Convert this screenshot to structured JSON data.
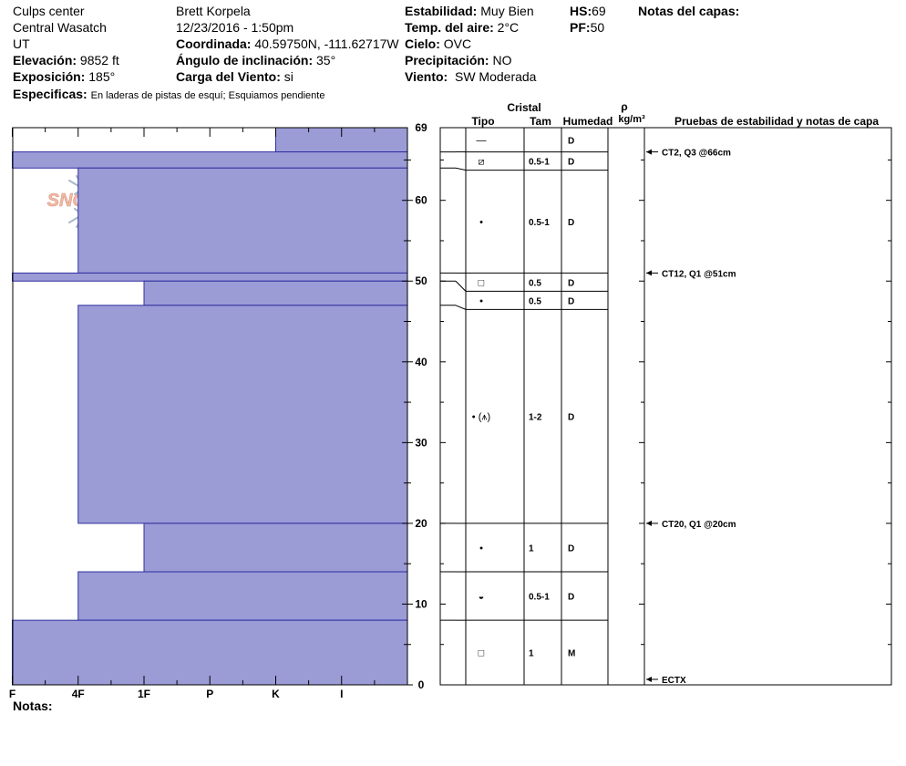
{
  "header": {
    "location": "Culps center",
    "range": "Central Wasatch",
    "state": "UT",
    "elevation_label": "Elevación:",
    "elevation": "9852 ft",
    "aspect_label": "Exposición:",
    "aspect": "185°",
    "specifics_label": "Especificas:",
    "specifics": "En laderas de pistas de esquí; Esquiamos pendiente",
    "observer": "Brett  Korpela",
    "datetime": "12/23/2016 - 1:50pm",
    "coord_label": "Coordinada:",
    "coord": "40.59750N, -111.62717W",
    "incline_label": "Ángulo de inclinación:",
    "incline": "35°",
    "wind_load_label": "Carga del Viento:",
    "wind_load": "si",
    "stability_label": "Estabilidad:",
    "stability": "Muy Bien",
    "air_temp_label": "Temp. del aire:",
    "air_temp": "2°C",
    "sky_label": "Cielo:",
    "sky": "OVC",
    "precip_label": "Precipitación:",
    "precip": "NO",
    "wind_label": "Viento:",
    "wind": "SW Moderada",
    "hs_label": "HS:",
    "hs": "69",
    "pf_label": "PF:",
    "pf": "50",
    "layer_notes_label": "Notas del capas:",
    "notes_label": "Notas:"
  },
  "table_headers": {
    "crystal": "Cristal",
    "type": "Tipo",
    "size": "Tam",
    "moisture": "Humedad",
    "rho": "ρ",
    "density_unit": "kg/m³",
    "tests": "Pruebas de estabilidad y notas de capa"
  },
  "logo": {
    "text": "SNOW PILOT"
  },
  "chart_data": {
    "type": "bar",
    "orientation": "horizontal",
    "ylabel": "",
    "xlabel": "",
    "ylim": [
      0,
      69
    ],
    "yticks": [
      0,
      10,
      20,
      30,
      40,
      50,
      60,
      69
    ],
    "xcategories": [
      "I",
      "K",
      "P",
      "1F",
      "4F",
      "F"
    ],
    "hardness_scale": {
      "F": 1,
      "4F": 2,
      "1F": 3,
      "P": 4,
      "K": 5,
      "I": 6
    },
    "layers": [
      {
        "top": 69,
        "bottom": 66,
        "hardness": "K",
        "type": "—",
        "size": "",
        "moisture": "D"
      },
      {
        "top": 66,
        "bottom": 64,
        "hardness": "F",
        "type": "⧄",
        "size": "0.5-1",
        "moisture": "D"
      },
      {
        "top": 64,
        "bottom": 51,
        "hardness": "4F",
        "type": "•",
        "size": "0.5-1",
        "moisture": "D"
      },
      {
        "top": 51,
        "bottom": 50,
        "hardness": "F",
        "type": "□",
        "size": "0.5",
        "moisture": "D"
      },
      {
        "top": 50,
        "bottom": 47,
        "hardness": "1F",
        "type": "•",
        "size": "0.5",
        "moisture": "D"
      },
      {
        "top": 47,
        "bottom": 20,
        "hardness": "4F",
        "type": "• (⩚)",
        "size": "1-2",
        "moisture": "D"
      },
      {
        "top": 20,
        "bottom": 14,
        "hardness": "1F",
        "type": "•",
        "size": "1",
        "moisture": "D"
      },
      {
        "top": 14,
        "bottom": 8,
        "hardness": "4F",
        "type": "◒",
        "size": "0.5-1",
        "moisture": "D"
      },
      {
        "top": 8,
        "bottom": 0,
        "hardness": "F",
        "type": "□",
        "size": "1",
        "moisture": "M"
      }
    ],
    "tests": [
      {
        "depth": 66,
        "label": "CT2, Q3 @66cm"
      },
      {
        "depth": 51,
        "label": "CT12, Q1 @51cm"
      },
      {
        "depth": 20,
        "label": "CT20, Q1 @20cm"
      },
      {
        "depth": 0,
        "label": "ECTX"
      }
    ],
    "colors": {
      "bar_fill": "#9b9bd6",
      "bar_stroke": "#3030a0",
      "logo": "#f2b9a3"
    }
  }
}
